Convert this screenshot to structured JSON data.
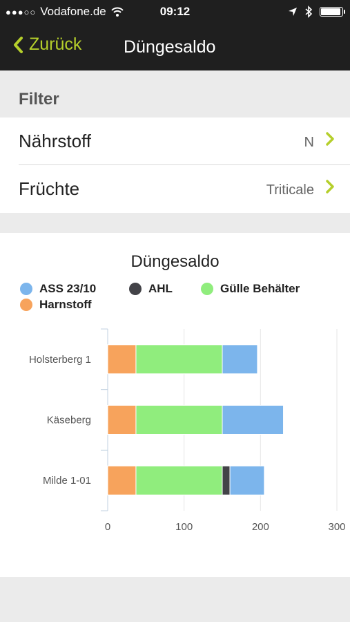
{
  "status_bar": {
    "carrier": "Vodafone.de",
    "time": "09:12"
  },
  "nav": {
    "back_label": "Zurück",
    "title": "Düngesaldo"
  },
  "filter": {
    "header": "Filter",
    "rows": [
      {
        "label": "Nährstoff",
        "value": "N"
      },
      {
        "label": "Früchte",
        "value": "Triticale"
      }
    ]
  },
  "colors": {
    "accent": "#b5cf2b",
    "ass": "#7cb5ec",
    "ahl": "#434348",
    "guelle": "#90ed7d",
    "harnstoff": "#f7a35c"
  },
  "chart_data": {
    "type": "bar",
    "orientation": "horizontal",
    "stacked": true,
    "title": "Düngesaldo",
    "categories": [
      "Holsterberg 1",
      "Käseberg",
      "Milde 1-01"
    ],
    "x_ticks": [
      "0",
      "100",
      "200",
      "300"
    ],
    "xlim": [
      0,
      300
    ],
    "series": [
      {
        "name": "Harnstoff",
        "color": "#f7a35c",
        "values": [
          37,
          37,
          37
        ]
      },
      {
        "name": "Gülle Behälter",
        "color": "#90ed7d",
        "values": [
          113,
          113,
          113
        ]
      },
      {
        "name": "AHL",
        "color": "#434348",
        "values": [
          0,
          0,
          10
        ]
      },
      {
        "name": "ASS 23/10",
        "color": "#7cb5ec",
        "values": [
          46,
          80,
          45
        ]
      }
    ],
    "legend": [
      "ASS 23/10",
      "AHL",
      "Gülle Behälter",
      "Harnstoff"
    ],
    "legend_position": "top",
    "grid": true
  }
}
